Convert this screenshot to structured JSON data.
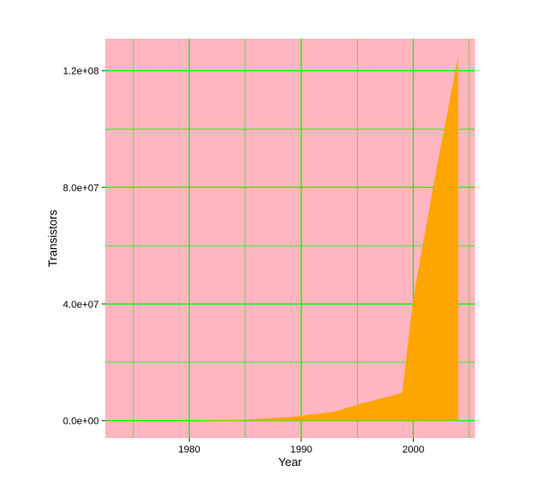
{
  "chart_data": {
    "type": "area",
    "xlabel": "Year",
    "ylabel": "Transistors",
    "xlim": [
      1972.5,
      2005.5
    ],
    "ylim": [
      -6000000,
      131000000
    ],
    "x_ticks": [
      {
        "value": 1980,
        "label": "1980"
      },
      {
        "value": 1990,
        "label": "1990"
      },
      {
        "value": 2000,
        "label": "2000"
      }
    ],
    "y_ticks": [
      {
        "value": 0,
        "label": "0.0e+00"
      },
      {
        "value": 40000000,
        "label": "4.0e+07"
      },
      {
        "value": 80000000,
        "label": "8.0e+07"
      },
      {
        "value": 120000000,
        "label": "1.2e+08"
      }
    ],
    "x_minor_grid": [
      1975,
      1985,
      1995,
      2005
    ],
    "y_minor_grid": [
      20000000,
      60000000,
      100000000
    ],
    "grid": true,
    "colors": {
      "panel_background": "#FFB6C1",
      "grid": "#00FF00",
      "area_fill": "#FFA500"
    },
    "series": [
      {
        "x": [
          1980,
          1982,
          1985,
          1989,
          1993,
          1995,
          1997,
          1999,
          2000,
          2002,
          2004
        ],
        "values": [
          30000,
          134000,
          275000,
          1200000,
          3100000,
          5500000,
          7500000,
          9500000,
          42000000,
          85000000,
          125000000
        ]
      }
    ]
  }
}
